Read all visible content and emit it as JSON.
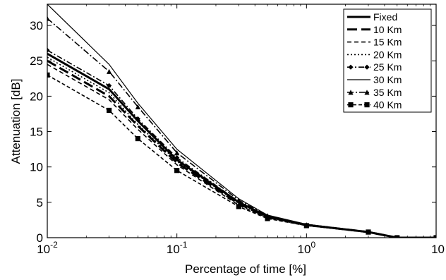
{
  "chart_data": {
    "type": "line",
    "xlabel": "Percentage of time [%]",
    "ylabel": "Attenuation [dB]",
    "xscale": "log",
    "xlim": [
      0.01,
      10
    ],
    "ylim": [
      0,
      33
    ],
    "grid": false,
    "legend_position": "top-right",
    "x_ticks": [
      {
        "base": "10",
        "exp": "-2"
      },
      {
        "base": "10",
        "exp": "-1"
      },
      {
        "base": "10",
        "exp": "0"
      },
      {
        "base": "10",
        "exp": ""
      }
    ],
    "y_ticks": [
      "0",
      "5",
      "10",
      "15",
      "20",
      "25",
      "30"
    ],
    "x": [
      0.01,
      0.03,
      0.05,
      0.1,
      0.3,
      0.5,
      1,
      3,
      5,
      10
    ],
    "series": [
      {
        "name": "Fixed",
        "values": [
          26.0,
          21.0,
          16.5,
          11.0,
          5.0,
          3.0,
          1.8,
          0.8,
          0.0,
          0.0
        ]
      },
      {
        "name": "10 Km",
        "values": [
          25.0,
          20.0,
          15.8,
          10.6,
          4.8,
          2.9,
          1.8,
          0.8,
          0.0,
          0.0
        ]
      },
      {
        "name": "15 Km",
        "values": [
          24.5,
          19.5,
          15.3,
          10.3,
          4.6,
          2.8,
          1.7,
          0.8,
          0.0,
          0.0
        ]
      },
      {
        "name": "20 Km",
        "values": [
          25.5,
          20.5,
          16.0,
          10.8,
          4.9,
          2.9,
          1.8,
          0.8,
          0.0,
          0.0
        ]
      },
      {
        "name": "25 Km",
        "values": [
          26.5,
          21.5,
          16.8,
          11.3,
          5.1,
          3.0,
          1.8,
          0.8,
          0.0,
          0.0
        ]
      },
      {
        "name": "30 Km",
        "values": [
          33.0,
          24.5,
          19.0,
          12.5,
          5.5,
          3.2,
          1.9,
          0.8,
          0.0,
          0.0
        ]
      },
      {
        "name": "35 Km",
        "values": [
          31.0,
          23.5,
          18.5,
          12.0,
          5.3,
          3.1,
          1.8,
          0.8,
          0.0,
          0.0
        ]
      },
      {
        "name": "40 Km",
        "values": [
          23.0,
          18.0,
          14.0,
          9.5,
          4.4,
          2.7,
          1.7,
          0.8,
          0.0,
          0.0
        ]
      }
    ],
    "styles": [
      {
        "dash": "",
        "width": 3,
        "marker": "none"
      },
      {
        "dash": "14 6",
        "width": 3,
        "marker": "none"
      },
      {
        "dash": "6 4",
        "width": 1.6,
        "marker": "none"
      },
      {
        "dash": "2 3",
        "width": 1.6,
        "marker": "none"
      },
      {
        "dash": "8 3 2 3",
        "width": 1.6,
        "marker": "diamond"
      },
      {
        "dash": "",
        "width": 1.2,
        "marker": "none"
      },
      {
        "dash": "9 3 2 3",
        "width": 1.6,
        "marker": "triangle"
      },
      {
        "dash": "5 3",
        "width": 1.6,
        "marker": "square"
      }
    ],
    "color": "#000000"
  }
}
